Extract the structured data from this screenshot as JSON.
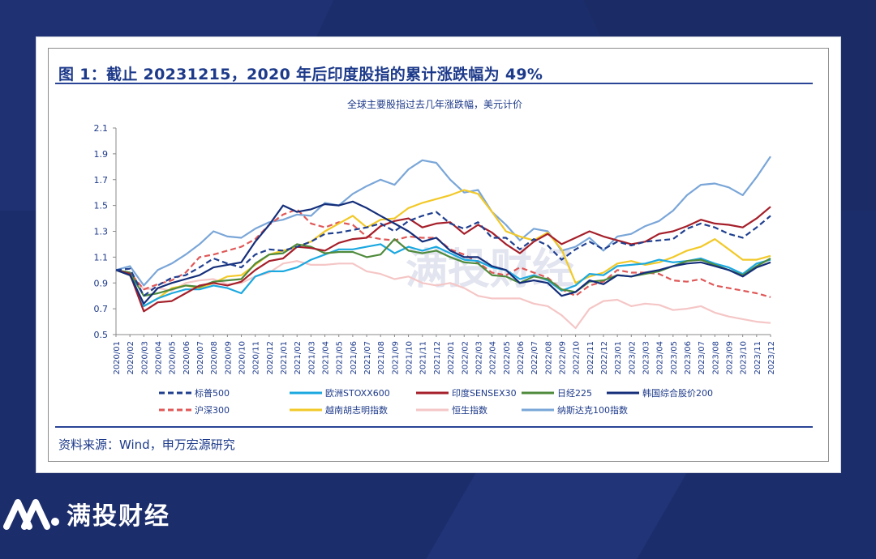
{
  "figure": {
    "title": "图 1：截止 20231215，2020 年后印度股指的累计涨跌幅为 49%",
    "source": "资料来源：Wind，申万宏源研究"
  },
  "brand": {
    "name": "满投财经",
    "watermark": "满投财经"
  },
  "chart_data": {
    "type": "line",
    "title": "全球主要股指过去几年涨跌幅，美元计价",
    "xlabel": "",
    "ylabel": "",
    "ylim": [
      0.5,
      2.1
    ],
    "yticks": [
      "0.5",
      "0.7",
      "0.9",
      "1.1",
      "1.3",
      "1.5",
      "1.7",
      "1.9",
      "2.1"
    ],
    "grid": false,
    "legend_position": "bottom",
    "x": [
      "2020/01",
      "2020/02",
      "2020/03",
      "2020/04",
      "2020/05",
      "2020/06",
      "2020/07",
      "2020/08",
      "2020/09",
      "2020/10",
      "2020/11",
      "2020/12",
      "2021/01",
      "2021/02",
      "2021/03",
      "2021/04",
      "2021/05",
      "2021/06",
      "2021/07",
      "2021/08",
      "2021/09",
      "2021/10",
      "2021/11",
      "2021/12",
      "2022/01",
      "2022/02",
      "2022/03",
      "2022/04",
      "2022/05",
      "2022/06",
      "2022/07",
      "2022/08",
      "2022/09",
      "2022/10",
      "2022/11",
      "2022/12",
      "2023/01",
      "2023/02",
      "2023/03",
      "2023/04",
      "2023/05",
      "2023/06",
      "2023/07",
      "2023/08",
      "2023/09",
      "2023/10",
      "2023/11",
      "2023/12"
    ],
    "series": [
      {
        "name": "标普500",
        "color": "#1f3f8f",
        "dash": "dash",
        "values": [
          1.0,
          1.01,
          0.8,
          0.88,
          0.94,
          0.96,
          1.02,
          1.09,
          1.05,
          1.02,
          1.12,
          1.16,
          1.15,
          1.18,
          1.22,
          1.28,
          1.29,
          1.31,
          1.33,
          1.36,
          1.3,
          1.38,
          1.42,
          1.45,
          1.36,
          1.32,
          1.37,
          1.25,
          1.25,
          1.16,
          1.24,
          1.19,
          1.08,
          1.16,
          1.22,
          1.16,
          1.22,
          1.19,
          1.22,
          1.23,
          1.24,
          1.32,
          1.36,
          1.33,
          1.28,
          1.25,
          1.33,
          1.42
        ]
      },
      {
        "name": "欧洲STOXX600",
        "color": "#1ba8e0",
        "dash": "solid",
        "values": [
          1.0,
          0.98,
          0.72,
          0.78,
          0.82,
          0.85,
          0.85,
          0.88,
          0.86,
          0.82,
          0.95,
          0.99,
          0.99,
          1.02,
          1.08,
          1.12,
          1.16,
          1.16,
          1.18,
          1.2,
          1.13,
          1.18,
          1.15,
          1.18,
          1.13,
          1.08,
          1.07,
          1.02,
          1.0,
          0.93,
          0.96,
          0.92,
          0.84,
          0.88,
          0.97,
          0.96,
          1.03,
          1.04,
          1.05,
          1.08,
          1.06,
          1.07,
          1.09,
          1.05,
          1.02,
          0.97,
          1.05,
          1.08
        ]
      },
      {
        "name": "印度SENSEX30",
        "color": "#a51f2a",
        "dash": "solid",
        "values": [
          1.0,
          0.97,
          0.68,
          0.75,
          0.76,
          0.82,
          0.88,
          0.9,
          0.88,
          0.91,
          1.0,
          1.07,
          1.09,
          1.18,
          1.17,
          1.15,
          1.21,
          1.24,
          1.25,
          1.34,
          1.38,
          1.4,
          1.33,
          1.36,
          1.37,
          1.28,
          1.35,
          1.29,
          1.2,
          1.13,
          1.22,
          1.28,
          1.2,
          1.25,
          1.3,
          1.26,
          1.23,
          1.2,
          1.22,
          1.28,
          1.3,
          1.34,
          1.39,
          1.36,
          1.35,
          1.33,
          1.4,
          1.49
        ]
      },
      {
        "name": "日经225",
        "color": "#4f8a3c",
        "dash": "solid",
        "values": [
          1.0,
          0.98,
          0.8,
          0.82,
          0.85,
          0.88,
          0.87,
          0.91,
          0.92,
          0.93,
          1.05,
          1.12,
          1.13,
          1.2,
          1.18,
          1.13,
          1.14,
          1.14,
          1.1,
          1.12,
          1.24,
          1.15,
          1.13,
          1.15,
          1.1,
          1.06,
          1.05,
          0.96,
          0.95,
          0.9,
          0.95,
          0.93,
          0.85,
          0.83,
          0.91,
          0.92,
          0.96,
          0.95,
          0.97,
          0.99,
          1.03,
          1.07,
          1.08,
          1.04,
          1.0,
          0.96,
          1.03,
          1.09
        ]
      },
      {
        "name": "韩国综合股价200",
        "color": "#142e7a",
        "dash": "solid",
        "values": [
          1.0,
          0.96,
          0.74,
          0.86,
          0.9,
          0.93,
          0.96,
          1.02,
          1.04,
          1.06,
          1.22,
          1.35,
          1.5,
          1.45,
          1.47,
          1.51,
          1.5,
          1.53,
          1.48,
          1.42,
          1.36,
          1.3,
          1.22,
          1.25,
          1.15,
          1.1,
          1.1,
          1.03,
          1.0,
          0.9,
          0.92,
          0.9,
          0.8,
          0.83,
          0.92,
          0.89,
          0.96,
          0.95,
          0.98,
          1.0,
          1.03,
          1.05,
          1.06,
          1.03,
          1.0,
          0.95,
          1.02,
          1.06
        ]
      },
      {
        "name": "沪深300",
        "color": "#e05858",
        "dash": "dash",
        "values": [
          1.0,
          0.98,
          0.85,
          0.89,
          0.92,
          0.98,
          1.1,
          1.12,
          1.15,
          1.18,
          1.24,
          1.35,
          1.43,
          1.47,
          1.36,
          1.33,
          1.37,
          1.35,
          1.26,
          1.24,
          1.23,
          1.26,
          1.25,
          1.25,
          1.16,
          1.12,
          1.06,
          0.98,
          0.96,
          1.02,
          0.98,
          0.94,
          0.85,
          0.8,
          0.88,
          0.91,
          1.0,
          0.98,
          0.98,
          0.97,
          0.92,
          0.91,
          0.93,
          0.88,
          0.86,
          0.84,
          0.82,
          0.79
        ]
      },
      {
        "name": "越南胡志明指数",
        "color": "#f2c928",
        "dash": "solid",
        "values": [
          1.0,
          0.96,
          0.72,
          0.78,
          0.86,
          0.88,
          0.86,
          0.9,
          0.95,
          0.96,
          1.04,
          1.12,
          1.15,
          1.18,
          1.22,
          1.3,
          1.36,
          1.42,
          1.33,
          1.39,
          1.4,
          1.48,
          1.52,
          1.55,
          1.58,
          1.62,
          1.59,
          1.45,
          1.3,
          1.26,
          1.23,
          1.29,
          1.16,
          0.9,
          0.95,
          0.98,
          1.05,
          1.07,
          1.04,
          1.06,
          1.1,
          1.15,
          1.18,
          1.24,
          1.16,
          1.08,
          1.08,
          1.11
        ]
      },
      {
        "name": "恒生指数",
        "color": "#f5c6c6",
        "dash": "solid",
        "values": [
          1.0,
          0.97,
          0.85,
          0.86,
          0.84,
          0.9,
          0.92,
          0.93,
          0.89,
          0.9,
          0.95,
          0.98,
          1.05,
          1.07,
          1.04,
          1.04,
          1.05,
          1.05,
          0.99,
          0.97,
          0.93,
          0.95,
          0.9,
          0.88,
          0.9,
          0.86,
          0.8,
          0.78,
          0.78,
          0.78,
          0.74,
          0.72,
          0.65,
          0.55,
          0.7,
          0.76,
          0.77,
          0.72,
          0.74,
          0.73,
          0.69,
          0.7,
          0.72,
          0.67,
          0.64,
          0.62,
          0.6,
          0.59
        ]
      },
      {
        "name": "纳斯达克100指数",
        "color": "#7aa6d8",
        "dash": "solid",
        "values": [
          1.0,
          1.03,
          0.88,
          1.0,
          1.05,
          1.12,
          1.2,
          1.3,
          1.26,
          1.25,
          1.32,
          1.37,
          1.39,
          1.43,
          1.42,
          1.52,
          1.5,
          1.59,
          1.65,
          1.7,
          1.66,
          1.78,
          1.85,
          1.83,
          1.7,
          1.6,
          1.62,
          1.45,
          1.35,
          1.23,
          1.32,
          1.3,
          1.15,
          1.18,
          1.25,
          1.15,
          1.26,
          1.28,
          1.34,
          1.38,
          1.46,
          1.58,
          1.66,
          1.67,
          1.64,
          1.58,
          1.72,
          1.88
        ]
      }
    ]
  }
}
